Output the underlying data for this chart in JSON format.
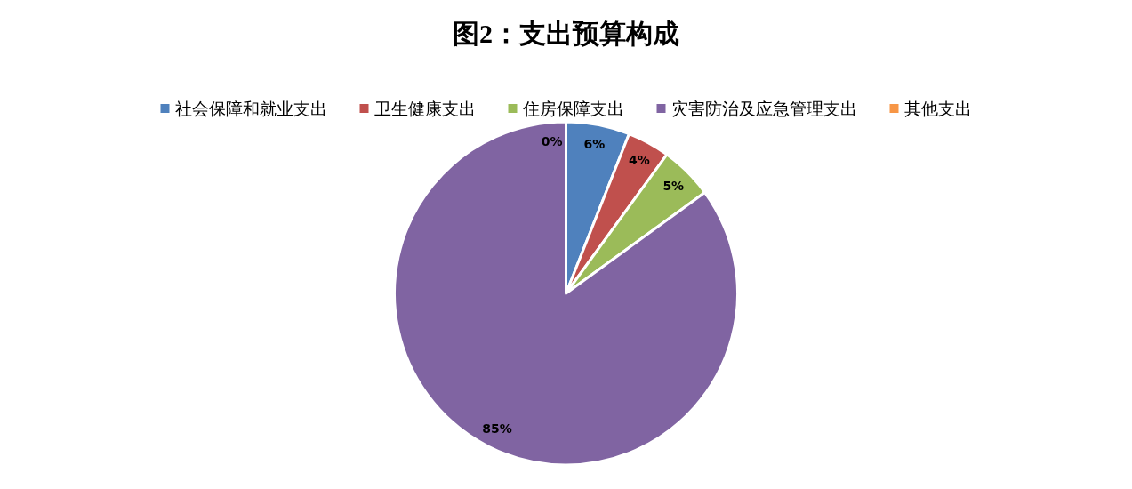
{
  "chart_data": {
    "type": "pie",
    "title": "图2：支出预算构成",
    "categories": [
      "社会保障和就业支出",
      "卫生健康支出",
      "住房保障支出",
      "灾害防治及应急管理支出",
      "其他支出"
    ],
    "values": [
      6,
      4,
      5,
      85,
      0
    ],
    "colors": [
      "#4f81bd",
      "#c0504d",
      "#9bbb59",
      "#8064a2",
      "#f79646"
    ],
    "value_labels": [
      "6%",
      "4%",
      "5%",
      "85%",
      "0%"
    ],
    "legend": "top"
  }
}
